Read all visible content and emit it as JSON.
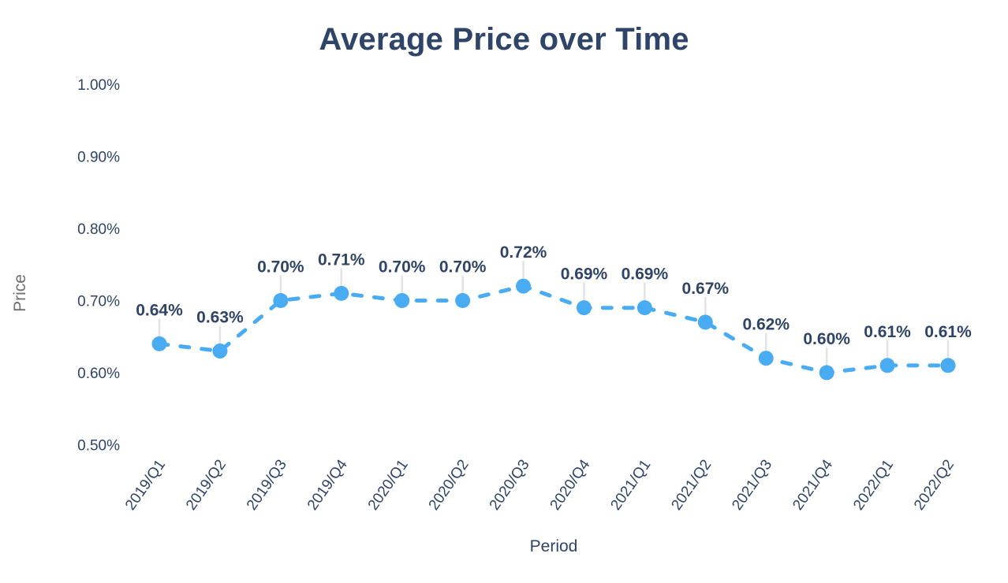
{
  "page": {
    "title": "Average Price over Time"
  },
  "chart_data": {
    "type": "line",
    "title": "Average Price over Time",
    "xlabel": "Period",
    "ylabel": "Price",
    "categories": [
      "2019/Q1",
      "2019/Q2",
      "2019/Q3",
      "2019/Q4",
      "2020/Q1",
      "2020/Q2",
      "2020/Q3",
      "2020/Q4",
      "2021/Q1",
      "2021/Q2",
      "2021/Q3",
      "2021/Q4",
      "2022/Q1",
      "2022/Q2"
    ],
    "series": [
      {
        "name": "Average Price",
        "values": [
          0.64,
          0.63,
          0.7,
          0.71,
          0.7,
          0.7,
          0.72,
          0.69,
          0.69,
          0.67,
          0.62,
          0.6,
          0.61,
          0.61
        ],
        "point_labels": [
          "0.64%",
          "0.63%",
          "0.70%",
          "0.71%",
          "0.70%",
          "0.70%",
          "0.72%",
          "0.69%",
          "0.69%",
          "0.67%",
          "0.62%",
          "0.60%",
          "0.61%",
          "0.61%"
        ]
      }
    ],
    "y_ticks": [
      "1.00%",
      "0.90%",
      "0.80%",
      "0.70%",
      "0.60%",
      "0.50%"
    ],
    "ylim": [
      0.5,
      1.0
    ],
    "grid": false,
    "legend": "none",
    "line_style": "dashed",
    "marker": "circle",
    "colors": {
      "line": "#49acf2",
      "marker": "#49acf2",
      "label_text": "#2e4468",
      "tick_text": "#2e4468",
      "y_axis_title": "#6e6e6e",
      "x_axis_title": "#2e4468",
      "leader_line": "#e3e3e3",
      "background": "#ffffff"
    }
  }
}
